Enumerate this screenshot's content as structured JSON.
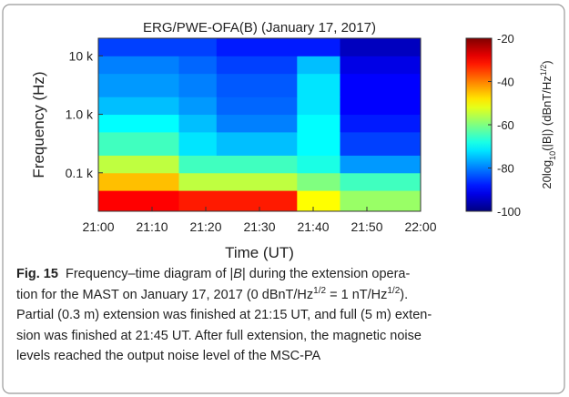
{
  "chart_data": {
    "type": "heatmap",
    "title": "ERG/PWE-OFA(B)  (January 17, 2017)",
    "xlabel": "Time (UT)",
    "ylabel": "Frequency (Hz)",
    "x_edges": [
      21.0,
      21.25,
      21.3667,
      21.6167,
      21.75,
      22.0
    ],
    "y_edges": [
      0.022,
      0.05,
      0.1,
      0.2,
      0.5,
      1,
      2,
      5,
      10,
      20
    ],
    "values": [
      [
        -30,
        -32,
        -32,
        -50,
        -58
      ],
      [
        -45,
        -55,
        -55,
        -60,
        -65
      ],
      [
        -55,
        -65,
        -65,
        -68,
        -78
      ],
      [
        -65,
        -72,
        -75,
        -70,
        -85
      ],
      [
        -70,
        -75,
        -80,
        -70,
        -88
      ],
      [
        -75,
        -78,
        -82,
        -72,
        -90
      ],
      [
        -78,
        -80,
        -83,
        -72,
        -90
      ],
      [
        -80,
        -82,
        -85,
        -75,
        -92
      ],
      [
        -85,
        -85,
        -88,
        -88,
        -95
      ]
    ],
    "xlim": [
      21.0,
      22.0
    ],
    "xticks": [
      {
        "value": 21.0,
        "label": "21:00"
      },
      {
        "value": 21.1667,
        "label": "21:10"
      },
      {
        "value": 21.3333,
        "label": "21:20"
      },
      {
        "value": 21.5,
        "label": "21:30"
      },
      {
        "value": 21.6667,
        "label": "21:40"
      },
      {
        "value": 21.8333,
        "label": "21:50"
      },
      {
        "value": 22.0,
        "label": "22:00"
      }
    ],
    "ylim": [
      0.022,
      20
    ],
    "yticks": [
      {
        "value": 0.1,
        "label": "0.1 k"
      },
      {
        "value": 1,
        "label": "1.0 k"
      },
      {
        "value": 10,
        "label": "10 k"
      }
    ],
    "yscale": "log",
    "colormap": "jet",
    "colorbar": {
      "clim": [
        -100,
        -20
      ],
      "ticks": [
        -20,
        -40,
        -60,
        -80,
        -100
      ],
      "label_parts": [
        "20log",
        "10",
        "(|B|) (dBnT/Hz",
        "1/2",
        ")"
      ]
    }
  },
  "caption": {
    "segments": [
      "Fig. 15",
      "Frequency–time diagram of |",
      "B",
      "| during the extension opera-",
      "tion for the MAST on January 17, 2017 (0 dBnT/Hz",
      "1/2",
      " = 1 nT/Hz",
      "1/2",
      ").",
      "Partial (0.3 m) extension was finished at 21:15 UT, and full (5 m) exten-",
      "sion was finished at 21:45 UT. After full extension, the magnetic noise",
      "levels reached the output noise level of the MSC-PA"
    ]
  }
}
